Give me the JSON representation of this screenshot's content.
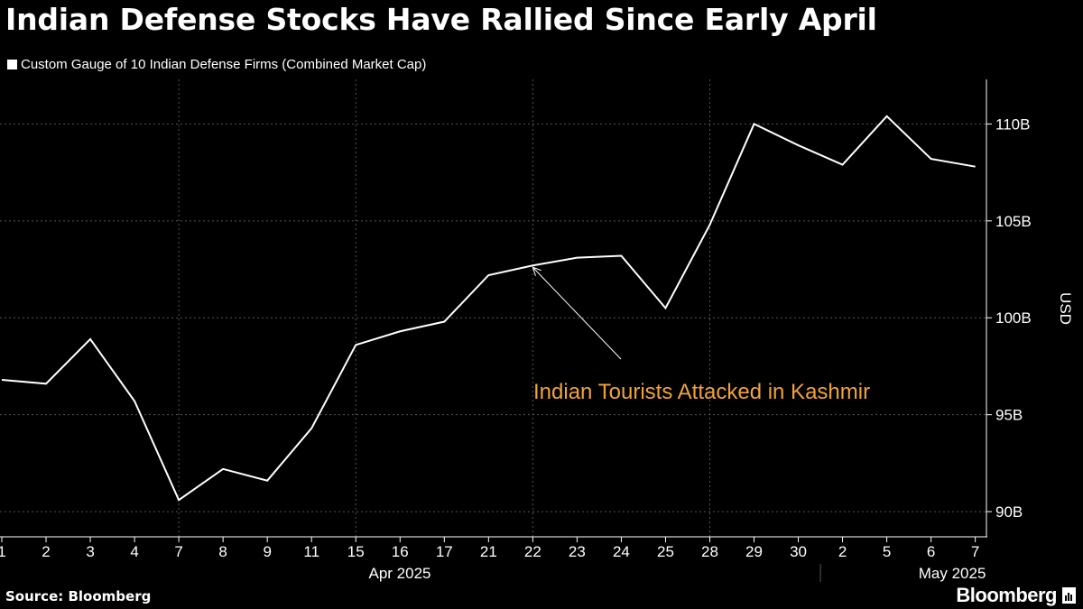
{
  "title": "Indian Defense Stocks Have Rallied Since Early April",
  "legend": {
    "label": "Custom Gauge of 10 Indian Defense Firms (Combined Market Cap)",
    "color": "#ffffff"
  },
  "footer": {
    "source": "Source: Bloomberg",
    "brand": "Bloomberg",
    "brand_icon": "bloomberg-terminal-icon"
  },
  "colors": {
    "background": "#000000",
    "line": "#ffffff",
    "annotation": "#f2a23b",
    "grid": "#555555"
  },
  "chart_data": {
    "type": "line",
    "title": "Indian Defense Stocks Have Rallied Since Early April",
    "ylabel": "USD",
    "ylim": [
      88.7,
      112.3
    ],
    "yticks": [
      90,
      95,
      100,
      105,
      110
    ],
    "ytick_labels": [
      "90B",
      "95B",
      "100B",
      "105B",
      "110B"
    ],
    "y_axis_position": "right",
    "grid": true,
    "categories": [
      "1",
      "2",
      "3",
      "4",
      "7",
      "8",
      "9",
      "11",
      "15",
      "16",
      "17",
      "21",
      "22",
      "23",
      "24",
      "25",
      "28",
      "29",
      "30",
      "2",
      "5",
      "6",
      "7"
    ],
    "month_labels": [
      {
        "label": "Apr 2025",
        "start_index": 0,
        "end_index": 18
      },
      {
        "label": "May 2025",
        "start_index": 19,
        "end_index": 22
      }
    ],
    "series": [
      {
        "values": [
          96.8,
          96.6,
          98.9,
          95.7,
          90.6,
          92.2,
          91.6,
          94.3,
          98.6,
          99.3,
          99.8,
          102.2,
          102.7,
          103.1,
          103.2,
          100.5,
          104.8,
          110.0,
          108.9,
          107.9,
          110.4,
          108.2,
          107.8
        ]
      }
    ],
    "annotations": [
      {
        "text": "Indian Tourists Attacked in Kashmir",
        "category_index": 12,
        "value": 102.7,
        "color": "#f2a23b"
      }
    ]
  }
}
